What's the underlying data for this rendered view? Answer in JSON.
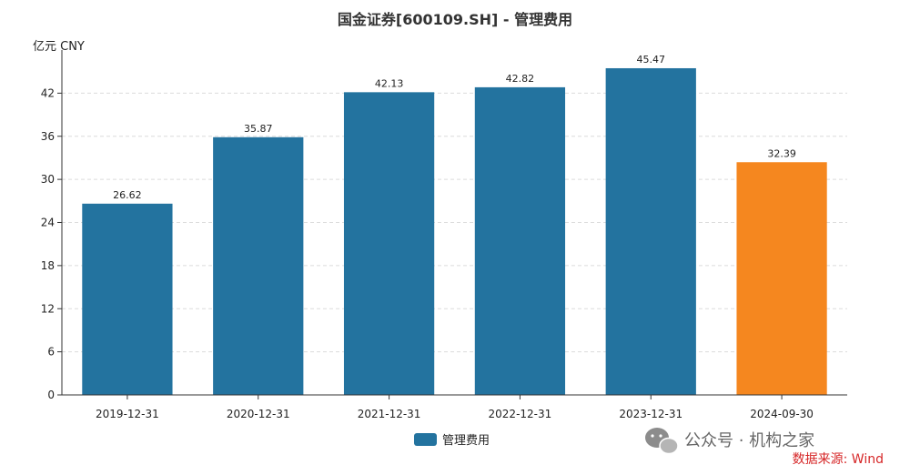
{
  "chart_data": {
    "type": "bar",
    "title": "国金证券[600109.SH] - 管理费用",
    "unit_label": "亿元  CNY",
    "categories": [
      "2019-12-31",
      "2020-12-31",
      "2021-12-31",
      "2022-12-31",
      "2023-12-31",
      "2024-09-30"
    ],
    "series": [
      {
        "name": "管理费用",
        "values": [
          26.62,
          35.87,
          42.13,
          42.82,
          45.47,
          32.39
        ]
      }
    ],
    "data_labels": [
      "26.62",
      "35.87",
      "42.13",
      "42.82",
      "45.47",
      "32.39"
    ],
    "y_ticks": [
      0,
      6,
      12,
      18,
      24,
      30,
      36,
      42
    ],
    "ylim": [
      0,
      48
    ],
    "grid": true,
    "legend_position": "bottom-center",
    "colors": {
      "bar": "#23739f",
      "highlight_bar": "#f5871f",
      "highlight_index": 5
    }
  },
  "watermark": {
    "text": "公众号 · 机构之家",
    "icon": "wechat-icon"
  },
  "source_note": "数据来源: Wind"
}
